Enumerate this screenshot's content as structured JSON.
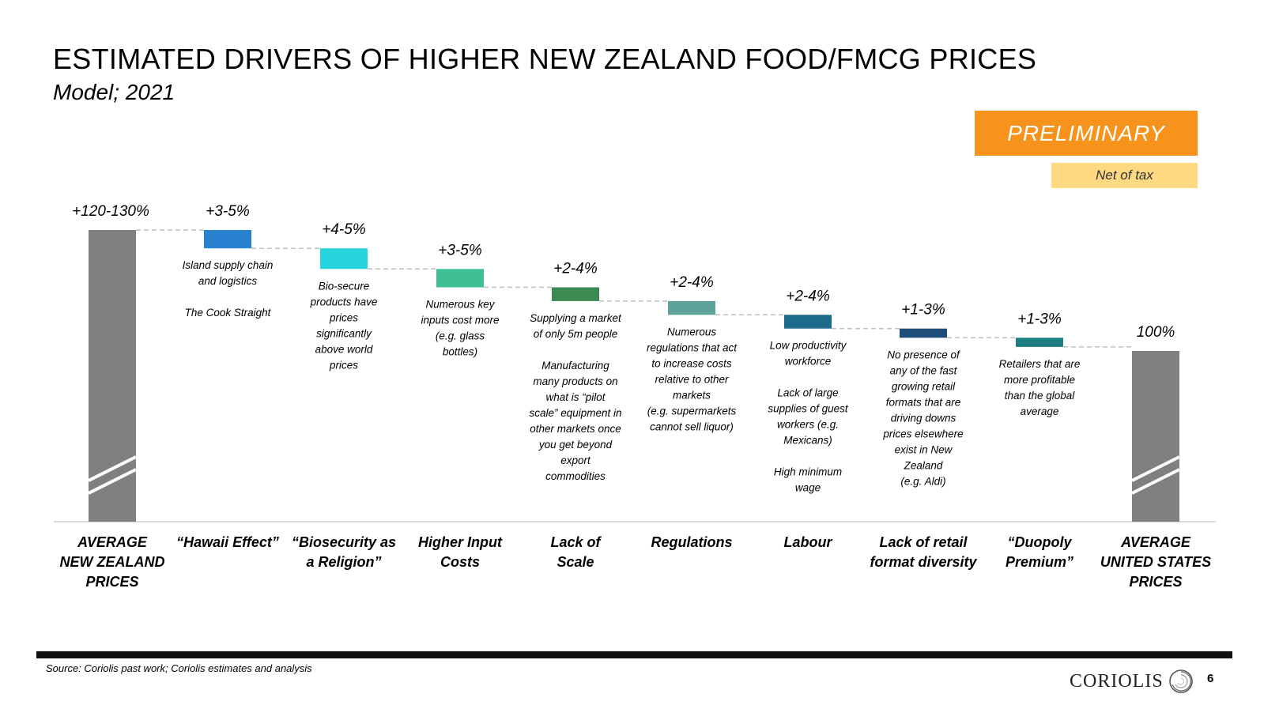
{
  "header": {
    "title": "ESTIMATED DRIVERS OF HIGHER NEW ZEALAND FOOD/FMCG PRICES",
    "subtitle": "Model; 2021"
  },
  "badges": {
    "preliminary": "PRELIMINARY",
    "net_of_tax": "Net of tax"
  },
  "chart_data": {
    "type": "bar",
    "subtype": "waterfall",
    "title": "ESTIMATED DRIVERS OF HIGHER NEW ZEALAND FOOD/FMCG PRICES",
    "subtitle": "Model; 2021",
    "xlabel": "",
    "ylabel": "",
    "grid": false,
    "legend": "none",
    "axis_break": true,
    "categories": [
      "AVERAGE NEW ZEALAND PRICES",
      "“Hawaii Effect”",
      "“Biosecurity as a Religion”",
      "Higher Input Costs",
      "Lack of Scale",
      "Regulations",
      "Labour",
      "Lack of retail format diversity",
      "“Duopoly Premium”",
      "AVERAGE UNITED STATES PRICES"
    ],
    "bars": [
      {
        "kind": "total",
        "label_lines": [
          "AVERAGE",
          "NEW ZEALAND",
          "PRICES"
        ],
        "value_label": "+120-130%",
        "value": 125,
        "color": "#808080",
        "notes": []
      },
      {
        "kind": "step",
        "label_lines": [
          "“Hawaii Effect”"
        ],
        "value_label": "+3-5%",
        "value": 4,
        "color": "#2882d0",
        "notes": [
          "Island supply chain",
          "and logistics",
          "",
          "The Cook Straight"
        ]
      },
      {
        "kind": "step",
        "label_lines": [
          "“Biosecurity as",
          "a Religion”"
        ],
        "value_label": "+4-5%",
        "value": 4.5,
        "color": "#27d3dc",
        "notes": [
          "Bio-secure",
          "products have",
          "prices",
          "significantly",
          "above world",
          "prices"
        ]
      },
      {
        "kind": "step",
        "label_lines": [
          "Higher Input",
          "Costs"
        ],
        "value_label": "+3-5%",
        "value": 4,
        "color": "#3fbe96",
        "notes": [
          "Numerous key",
          "inputs cost more",
          "(e.g. glass",
          "bottles)"
        ]
      },
      {
        "kind": "step",
        "label_lines": [
          "Lack of",
          "Scale"
        ],
        "value_label": "+2-4%",
        "value": 3,
        "color": "#3b8a52",
        "notes": [
          "Supplying a market",
          "of only 5m people",
          "",
          "Manufacturing",
          "many products on",
          "what is “pilot",
          "scale” equipment in",
          "other markets once",
          "you get beyond",
          "export",
          "commodities"
        ]
      },
      {
        "kind": "step",
        "label_lines": [
          "Regulations"
        ],
        "value_label": "+2-4%",
        "value": 3,
        "color": "#5fa29c",
        "notes": [
          "Numerous",
          "regulations that act",
          "to increase costs",
          "relative to other",
          "markets",
          "(e.g. supermarkets",
          "cannot sell liquor)"
        ]
      },
      {
        "kind": "step",
        "label_lines": [
          "Labour"
        ],
        "value_label": "+2-4%",
        "value": 3,
        "color": "#1d6a8b",
        "notes": [
          "Low productivity",
          "workforce",
          "",
          "Lack of large",
          "supplies of guest",
          "workers (e.g.",
          "Mexicans)",
          "",
          "High minimum",
          "wage"
        ]
      },
      {
        "kind": "step",
        "label_lines": [
          "Lack of retail",
          "format diversity"
        ],
        "value_label": "+1-3%",
        "value": 2,
        "color": "#1f4c78",
        "notes": [
          "No presence of",
          "any of the fast",
          "growing retail",
          "formats that are",
          "driving downs",
          "prices elsewhere",
          "exist in New",
          "Zealand",
          "(e.g. Aldi)"
        ]
      },
      {
        "kind": "step",
        "label_lines": [
          "“Duopoly",
          "Premium”"
        ],
        "value_label": "+1-3%",
        "value": 2,
        "color": "#1c7f80",
        "notes": [
          "Retailers that are",
          "more profitable",
          "than the global",
          "average"
        ]
      },
      {
        "kind": "total",
        "label_lines": [
          "AVERAGE",
          "UNITED STATES",
          "PRICES"
        ],
        "value_label": "100%",
        "value": 100,
        "color": "#808080",
        "notes": []
      }
    ]
  },
  "footer": {
    "source": "Source: Coriolis past work; Coriolis estimates and analysis",
    "logo": "CORIOLIS",
    "page": "6"
  }
}
